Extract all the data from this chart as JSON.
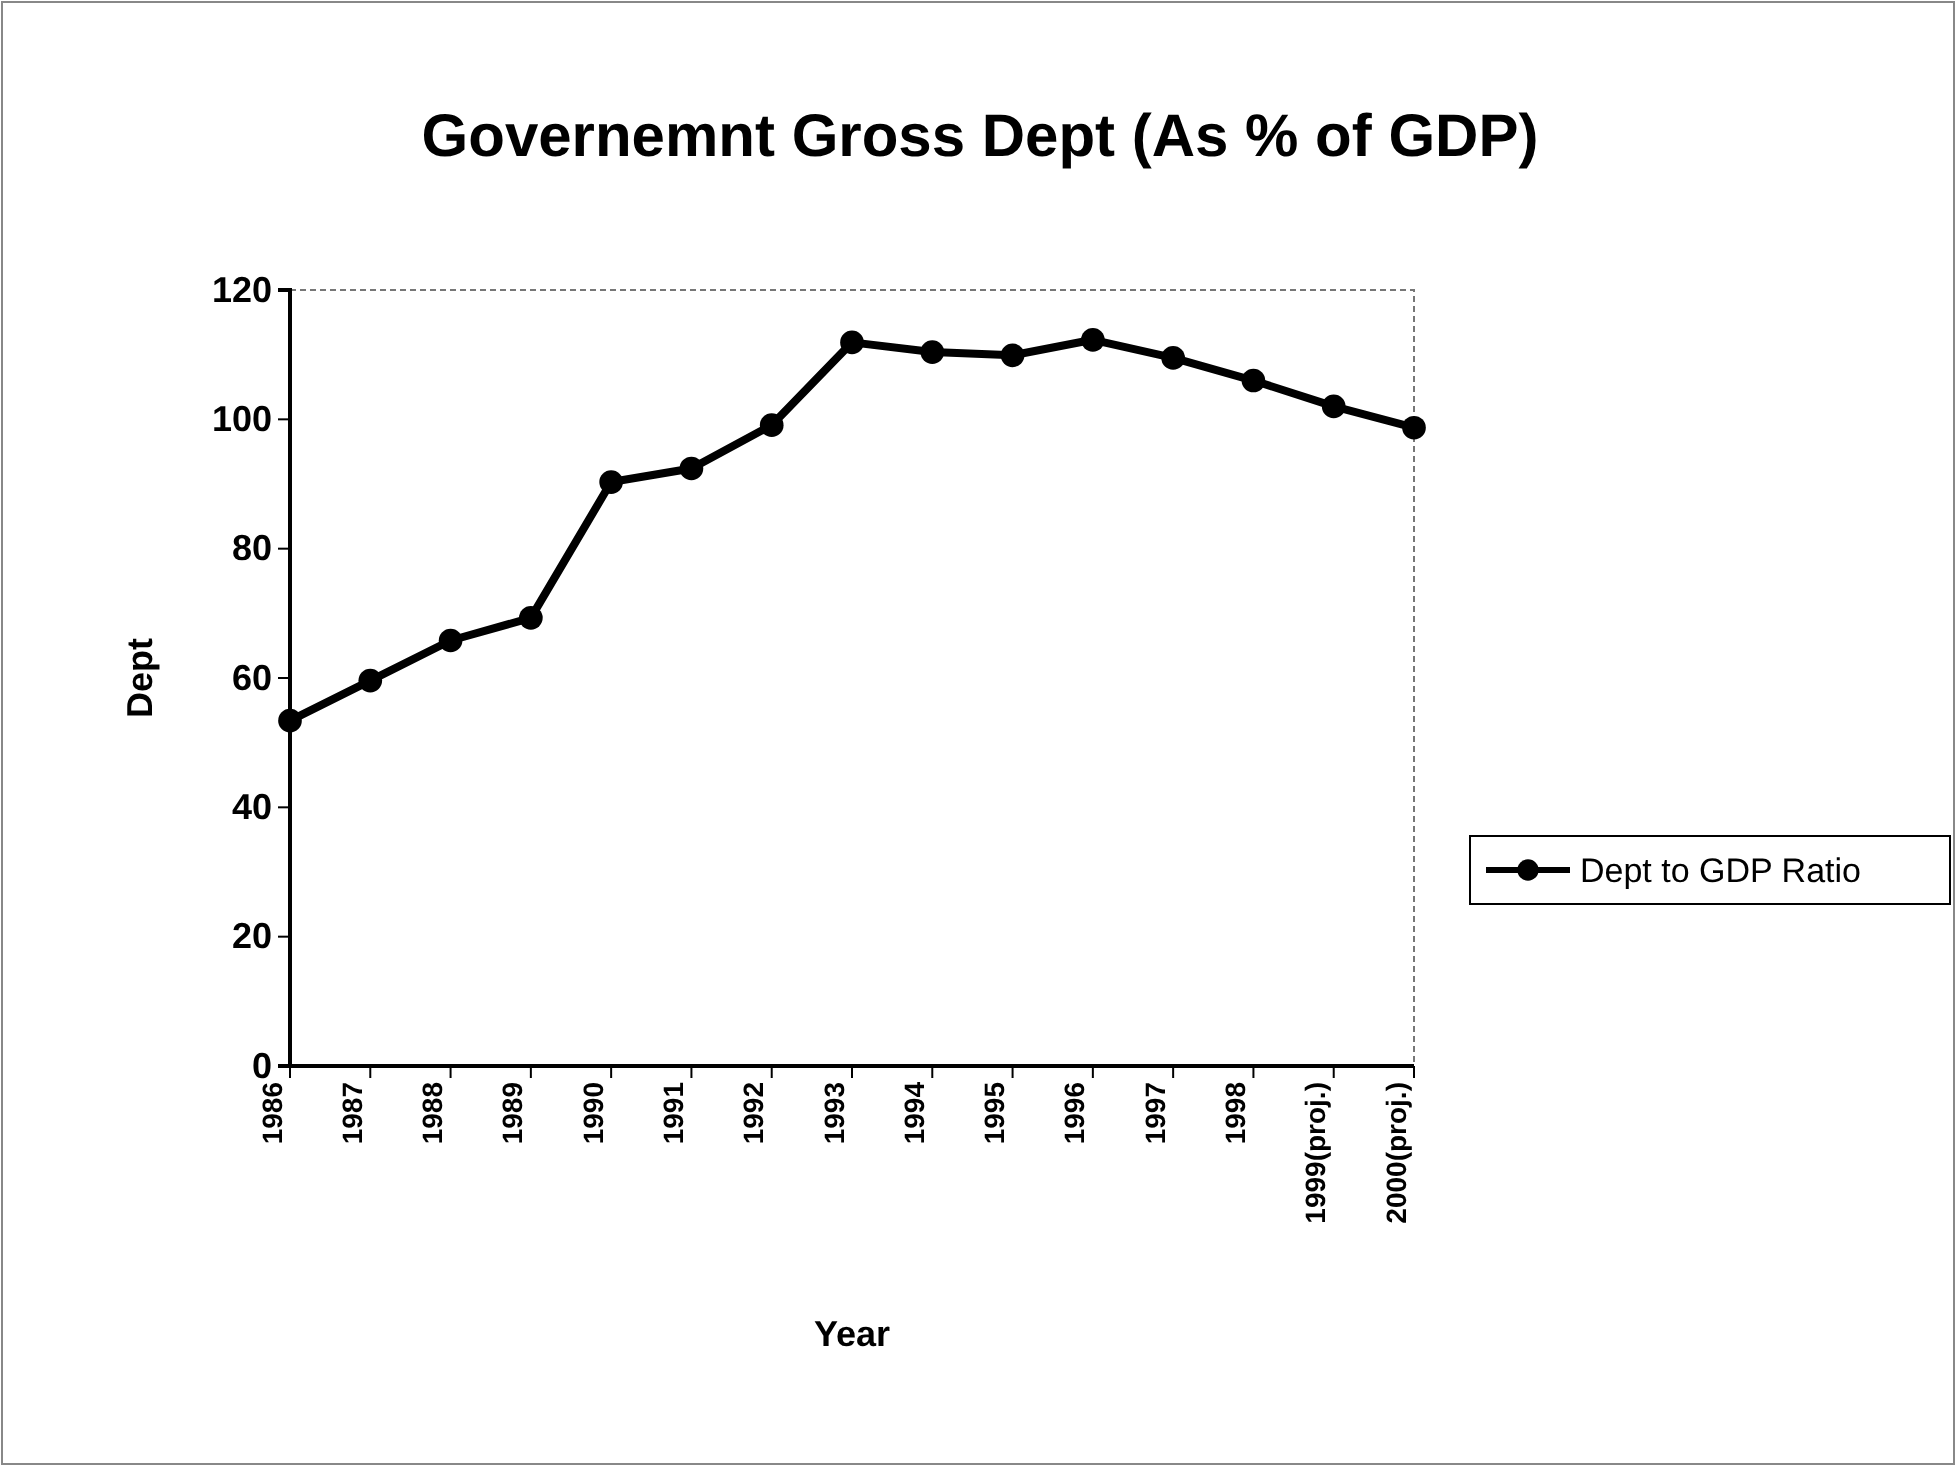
{
  "chart_data": {
    "type": "line",
    "title": "Governemnt Gross Dept (As % of GDP)",
    "xlabel": "Year",
    "ylabel": "Dept",
    "categories": [
      "1986",
      "1987",
      "1988",
      "1989",
      "1990",
      "1991",
      "1992",
      "1993",
      "1994",
      "1995",
      "1996",
      "1997",
      "1998",
      "1999(proj.)",
      "2000(proj.)"
    ],
    "series": [
      {
        "name": "Dept to GDP Ratio",
        "color": "#000000",
        "values": [
          53.4,
          59.6,
          65.8,
          69.3,
          90.3,
          92.4,
          99.1,
          111.9,
          110.4,
          109.9,
          112.3,
          109.5,
          106,
          102,
          98.7
        ]
      }
    ],
    "ylim": [
      0,
      120
    ],
    "yticks": [
      0,
      20,
      40,
      60,
      80,
      100,
      120
    ],
    "grid": false,
    "legend": "right",
    "marker": "circle",
    "line_style": "solid"
  }
}
